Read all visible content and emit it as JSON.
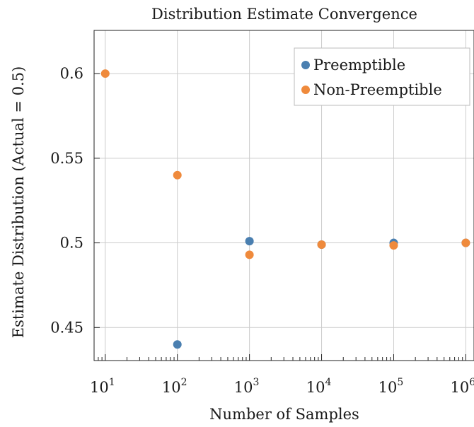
{
  "chart_data": {
    "type": "scatter",
    "title": "Distribution Estimate Convergence",
    "xlabel": "Number of Samples",
    "ylabel": "Estimate Distribution (Actual = 0.5)",
    "xscale": "log",
    "xlim": [
      7,
      1300000
    ],
    "ylim": [
      0.4305,
      0.6255
    ],
    "grid": true,
    "legend": "top-right",
    "xticks": [
      {
        "value": 10,
        "base": "10",
        "exp": "1"
      },
      {
        "value": 100,
        "base": "10",
        "exp": "2"
      },
      {
        "value": 1000,
        "base": "10",
        "exp": "3"
      },
      {
        "value": 10000,
        "base": "10",
        "exp": "4"
      },
      {
        "value": 100000,
        "base": "10",
        "exp": "5"
      },
      {
        "value": 1000000,
        "base": "10",
        "exp": "6"
      }
    ],
    "yticks": [
      {
        "value": 0.45,
        "label": "0.45"
      },
      {
        "value": 0.5,
        "label": "0.5"
      },
      {
        "value": 0.55,
        "label": "0.55"
      },
      {
        "value": 0.6,
        "label": "0.6"
      }
    ],
    "series": [
      {
        "name": "Preemptible",
        "color": "#4a7fb0",
        "x": [
          100,
          1000,
          10000,
          100000,
          1000000
        ],
        "y": [
          0.44,
          0.501,
          0.499,
          0.5,
          0.5
        ]
      },
      {
        "name": "Non-Preemptible",
        "color": "#ef8a3c",
        "x": [
          10,
          100,
          1000,
          10000,
          100000,
          1000000
        ],
        "y": [
          0.6,
          0.54,
          0.493,
          0.499,
          0.4985,
          0.5
        ]
      }
    ]
  }
}
